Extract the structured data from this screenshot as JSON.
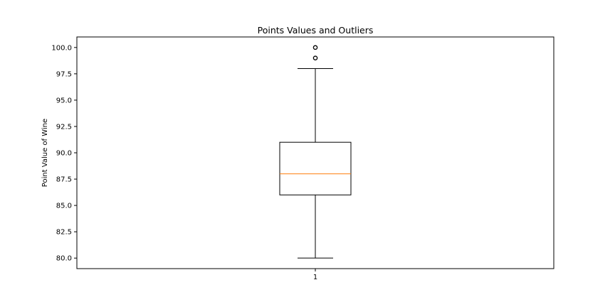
{
  "chart_data": {
    "type": "box",
    "title": "Points Values and Outliers",
    "xlabel": "",
    "ylabel": "Point Value of Wine",
    "ylim": [
      79,
      101
    ],
    "yticks": [
      80.0,
      82.5,
      85.0,
      87.5,
      90.0,
      92.5,
      95.0,
      97.5,
      100.0
    ],
    "ytick_labels": [
      "80.0",
      "82.5",
      "85.0",
      "87.5",
      "90.0",
      "92.5",
      "95.0",
      "97.5",
      "100.0"
    ],
    "categories": [
      "1"
    ],
    "boxes": [
      {
        "label": "1",
        "whisker_low": 80,
        "q1": 86,
        "median": 88,
        "q3": 91,
        "whisker_high": 98,
        "outliers": [
          99,
          99,
          100,
          100
        ]
      }
    ],
    "grid": false,
    "colors": {
      "box": "#000000",
      "median": "#ff7f0e",
      "whisker": "#000000",
      "outlier": "#000000"
    }
  }
}
